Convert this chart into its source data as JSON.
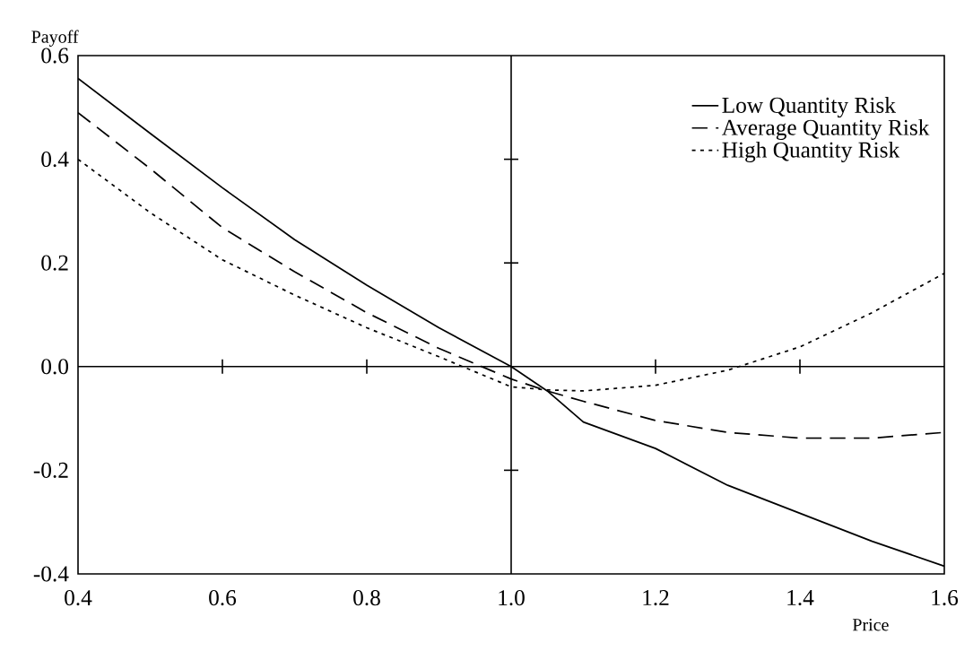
{
  "chart_data": {
    "type": "line",
    "ylabel": "Payoff",
    "xlabel": "Price",
    "xlim": [
      0.4,
      1.6
    ],
    "ylim": [
      -0.4,
      0.6
    ],
    "xticks": [
      {
        "value": 0.4,
        "label": "0.4"
      },
      {
        "value": 0.6,
        "label": "0.6"
      },
      {
        "value": 0.8,
        "label": "0.8"
      },
      {
        "value": 1.0,
        "label": "1.0"
      },
      {
        "value": 1.2,
        "label": "1.2"
      },
      {
        "value": 1.4,
        "label": "1.4"
      },
      {
        "value": 1.6,
        "label": "1.6"
      }
    ],
    "yticks": [
      {
        "value": -0.4,
        "label": "-0.4"
      },
      {
        "value": -0.2,
        "label": "-0.2"
      },
      {
        "value": 0.0,
        "label": "0.0"
      },
      {
        "value": 0.2,
        "label": "0.2"
      },
      {
        "value": 0.4,
        "label": "0.4"
      },
      {
        "value": 0.6,
        "label": "0.6"
      }
    ],
    "x": [
      0.4,
      0.5,
      0.6,
      0.7,
      0.8,
      0.9,
      1.0,
      1.05,
      1.1,
      1.2,
      1.3,
      1.4,
      1.5,
      1.6
    ],
    "series": [
      {
        "name": "Low Quantity Risk",
        "color": "#000000",
        "line_style": "solid",
        "values": [
          0.556,
          0.45,
          0.345,
          0.245,
          0.157,
          0.075,
          0.0,
          -0.047,
          -0.107,
          -0.158,
          -0.229,
          -0.283,
          -0.337,
          -0.385
        ]
      },
      {
        "name": "Average Quantity Risk",
        "color": "#000000",
        "line_style": "dashed",
        "values": [
          0.49,
          0.382,
          0.268,
          0.183,
          0.104,
          0.035,
          -0.024,
          -0.047,
          -0.067,
          -0.104,
          -0.127,
          -0.138,
          -0.138,
          -0.127
        ]
      },
      {
        "name": "High Quantity Risk",
        "color": "#000000",
        "line_style": "dotted",
        "values": [
          0.4,
          0.297,
          0.206,
          0.138,
          0.075,
          0.019,
          -0.039,
          -0.045,
          -0.047,
          -0.036,
          -0.007,
          0.038,
          0.104,
          0.18
        ]
      }
    ],
    "ref_lines": [
      {
        "axis": "x",
        "value": 1.0
      },
      {
        "axis": "y",
        "value": 0.0
      }
    ],
    "grid": false,
    "legend": "top right",
    "marker": "none"
  }
}
